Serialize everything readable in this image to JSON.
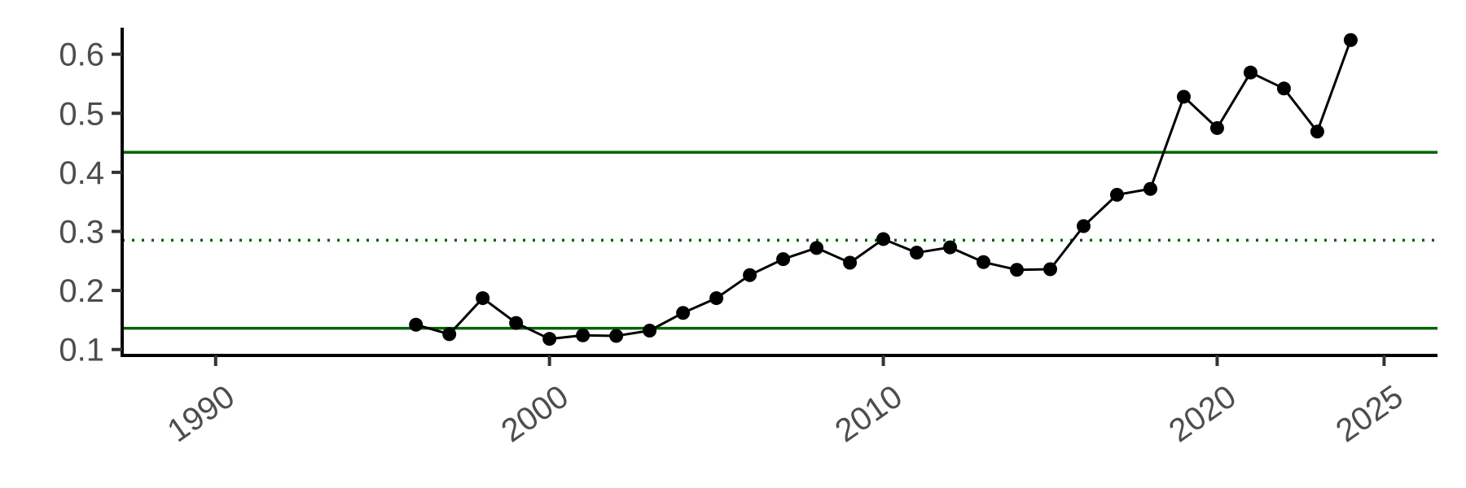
{
  "chart_data": {
    "type": "line",
    "title": "",
    "xlabel": "",
    "ylabel": "",
    "xlim": [
      1987.2,
      2026.6
    ],
    "ylim": [
      0.09,
      0.645
    ],
    "x_ticks": [
      1990,
      2000,
      2010,
      2020,
      2025
    ],
    "x_tick_labels": [
      "1990",
      "2000",
      "2010",
      "2020",
      "2025"
    ],
    "y_ticks": [
      0.1,
      0.2,
      0.3,
      0.4,
      0.5,
      0.6
    ],
    "y_tick_labels": [
      "0.1",
      "0.2",
      "0.3",
      "0.4",
      "0.5",
      "0.6"
    ],
    "grid": false,
    "legend": "none",
    "series": [
      {
        "color": "#000000",
        "x": [
          1996,
          1997,
          1998,
          1999,
          2000,
          2001,
          2002,
          2003,
          2004,
          2005,
          2006,
          2007,
          2008,
          2009,
          2010,
          2011,
          2012,
          2013,
          2014,
          2015,
          2016,
          2017,
          2018,
          2019,
          2020,
          2021,
          2022,
          2023,
          2024
        ],
        "values": [
          0.142,
          0.126,
          0.187,
          0.145,
          0.118,
          0.124,
          0.123,
          0.132,
          0.162,
          0.187,
          0.226,
          0.253,
          0.272,
          0.247,
          0.287,
          0.264,
          0.273,
          0.248,
          0.235,
          0.236,
          0.309,
          0.362,
          0.372,
          0.528,
          0.475,
          0.569,
          0.542,
          0.469,
          0.624
        ]
      }
    ],
    "reference_lines": [
      {
        "y": 0.434,
        "style": "solid",
        "color": "#006400"
      },
      {
        "y": 0.285,
        "style": "dotted",
        "color": "#006400"
      },
      {
        "y": 0.136,
        "style": "solid",
        "color": "#006400"
      }
    ]
  }
}
